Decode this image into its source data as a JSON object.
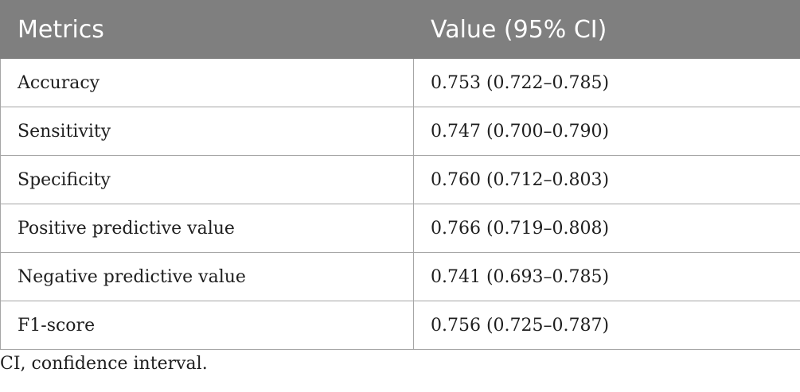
{
  "table": {
    "headers": [
      "Metrics",
      "Value (95% CI)"
    ],
    "rows": [
      {
        "metric": "Accuracy",
        "value": "0.753 (0.722–0.785)"
      },
      {
        "metric": "Sensitivity",
        "value": "0.747 (0.700–0.790)"
      },
      {
        "metric": "Specificity",
        "value": "0.760 (0.712–0.803)"
      },
      {
        "metric": "Positive predictive value",
        "value": "0.766 (0.719–0.808)"
      },
      {
        "metric": "Negative predictive value",
        "value": "0.741 (0.693–0.785)"
      },
      {
        "metric": "F1-score",
        "value": "0.756 (0.725–0.787)"
      }
    ]
  },
  "footnote": "CI, confidence interval.",
  "colors": {
    "header_bg": "#7f7f7f",
    "header_text": "#ffffff",
    "border": "#a6a6a6",
    "body_text": "#1e1e1e"
  }
}
